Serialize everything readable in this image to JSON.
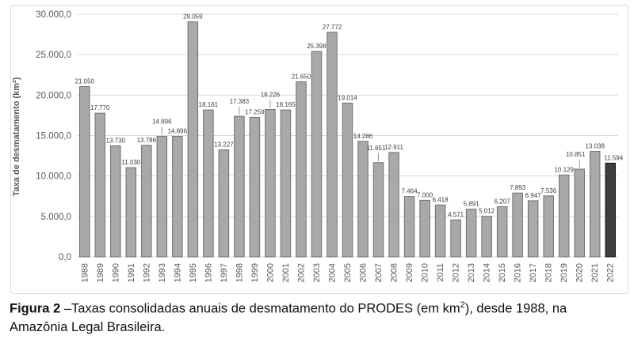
{
  "figure": {
    "caption": {
      "label": "Figura 2",
      "dash": " –",
      "body_before_sup": "Taxas consolidadas anuais de desmatamento do PRODES (em km",
      "sup": "2",
      "body_after_sup": "), desde 1988, na Amazônia Legal Brasileira."
    }
  },
  "chart_data": {
    "type": "bar",
    "title": "",
    "xlabel": "",
    "ylabel": "Taxa de desmatamento (km²)",
    "ylim": [
      0,
      30000
    ],
    "grid": true,
    "legend": false,
    "y_ticks": [
      "0,0",
      "5.000,0",
      "10.000,0",
      "15.000,0",
      "20.000,0",
      "25.000,0",
      "30.000,0"
    ],
    "categories": [
      "1988",
      "1989",
      "1990",
      "1991",
      "1992",
      "1993",
      "1994",
      "1995",
      "1996",
      "1997",
      "1998",
      "1999",
      "2000",
      "2001",
      "2002",
      "2003",
      "2004",
      "2005",
      "2006",
      "2007",
      "2008",
      "2009",
      "2010",
      "2011",
      "2012",
      "2013",
      "2014",
      "2015",
      "2016",
      "2017",
      "2018",
      "2019",
      "2020",
      "2021",
      "2022"
    ],
    "values": [
      21050,
      17770,
      13730,
      11030,
      13786,
      14896,
      14896,
      29059,
      18161,
      13227,
      17383,
      17259,
      18226,
      18165,
      21650,
      25398,
      27772,
      19014,
      14286,
      11651,
      12911,
      7464,
      7000,
      6418,
      4571,
      5891,
      5012,
      6207,
      7893,
      6947,
      7536,
      10129,
      10851,
      13038,
      11594
    ],
    "labels": [
      "21.050",
      "17.770",
      "13.730",
      "11.030",
      "13.786",
      "14.896",
      "14.896",
      "29.059",
      "18.161",
      "13.227",
      "17.383",
      "17.259",
      "18.226",
      "18.165",
      "21.650",
      "25.398",
      "27.772",
      "19.014",
      "14.286",
      "11.651",
      "12.911",
      "7.464",
      "7.000",
      "6.418",
      "4.571",
      "5.891",
      "5.012",
      "6.207",
      "7.893",
      "6.947",
      "7.536",
      "10.129",
      "10.851",
      "13.038",
      "11.594"
    ],
    "raised_label_indices": [
      5,
      10,
      12,
      19,
      32
    ],
    "highlight_index": 34,
    "colors": {
      "bar_fill": "#a9a9a9",
      "bar_stroke": "#707070",
      "highlight_fill": "#3d3d3d",
      "highlight_stroke": "#1a1a1a",
      "gridline": "#d9d9d9",
      "leader_line": "#7f7f7f",
      "axis_text": "#595959",
      "bar_label_text": "#404040",
      "panel_border": "#d9d9d9"
    }
  }
}
